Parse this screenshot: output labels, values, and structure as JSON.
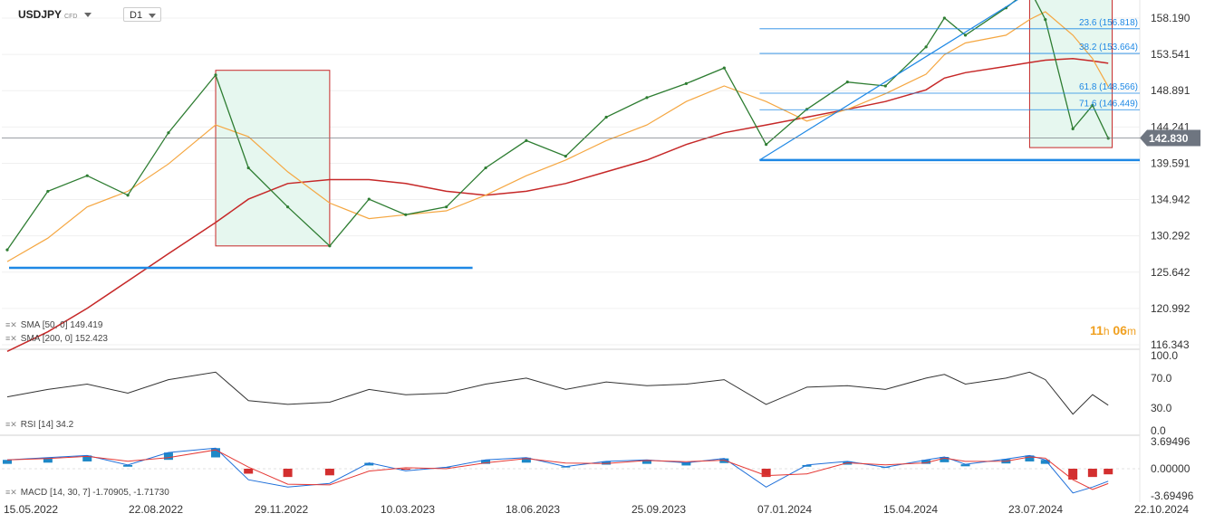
{
  "header": {
    "symbol": "USDJPY",
    "instrument_type": "CFD",
    "timeframe": "D1"
  },
  "countdown": {
    "hours": "11",
    "h_unit": "h",
    "minutes": "06",
    "m_unit": "m"
  },
  "colors": {
    "candle": "#2e7d32",
    "sma50": "#f5a742",
    "sma200": "#c62828",
    "support": "#1e88e5",
    "fib": "#1e88e5",
    "box_fill": "#e6f7ef",
    "box_border": "#c62828",
    "price_label_bg": "#6e7580",
    "rsi": "#333333",
    "macd_main": "#1e6fd9",
    "macd_signal": "#e53935",
    "hist_pos": "#1e88c7",
    "hist_neg": "#d32f2f"
  },
  "price_axis_labels": [
    "158.190",
    "153.541",
    "148.891",
    "144.241",
    "139.591",
    "134.942",
    "130.292",
    "125.642",
    "120.992",
    "116.343"
  ],
  "current_price": "142.830",
  "fib_levels": [
    {
      "label": "23.6 (156.818)",
      "value": 156.818
    },
    {
      "label": "38.2 (153.664)",
      "value": 153.664
    },
    {
      "label": "61.8 (148.566)",
      "value": 148.566
    },
    {
      "label": "71.6 (146.449)",
      "value": 146.449
    }
  ],
  "rsi_axis_labels": [
    "100.0",
    "70.0",
    "30.0",
    "0.0"
  ],
  "macd_axis_labels": [
    "3.69496",
    "0.00000",
    "-3.69496"
  ],
  "date_labels": [
    "15.05.2022",
    "22.08.2022",
    "29.11.2022",
    "10.03.2023",
    "18.06.2023",
    "25.09.2023",
    "07.01.2024",
    "15.04.2024",
    "23.07.2024",
    "22.10.2024"
  ],
  "legends": {
    "sma50": "SMA  [50,  0]  149.419",
    "sma200": "SMA  [200,  0]  152.423",
    "rsi": "RSI  [14]  34.2",
    "macd": "MACD  [14,  30,  7]  -1.70905,  -1.71730"
  },
  "chart_data": {
    "type": "line",
    "title": "USDJPY",
    "x": [
      "2022-05-15",
      "2022-06-15",
      "2022-07-15",
      "2022-08-15",
      "2022-09-15",
      "2022-10-21",
      "2022-11-15",
      "2022-12-15",
      "2023-01-16",
      "2023-02-15",
      "2023-03-15",
      "2023-04-15",
      "2023-05-15",
      "2023-06-15",
      "2023-07-15",
      "2023-08-15",
      "2023-09-15",
      "2023-10-15",
      "2023-11-13",
      "2023-12-15",
      "2024-01-15",
      "2024-02-15",
      "2024-03-15",
      "2024-04-15",
      "2024-04-29",
      "2024-05-15",
      "2024-06-15",
      "2024-07-03",
      "2024-07-15",
      "2024-08-05",
      "2024-08-20",
      "2024-09-01"
    ],
    "series": [
      {
        "name": "USDJPY",
        "values": [
          128.5,
          136.0,
          138.0,
          135.5,
          143.5,
          150.9,
          139.0,
          134.0,
          129.0,
          135.0,
          133.0,
          134.0,
          139.0,
          142.5,
          140.5,
          145.5,
          148.0,
          149.8,
          151.8,
          142.0,
          146.5,
          150.0,
          149.5,
          154.5,
          158.2,
          156.0,
          159.5,
          161.9,
          158.0,
          144.0,
          147.0,
          142.8
        ]
      },
      {
        "name": "SMA [50, 0]",
        "values": [
          127.0,
          130.0,
          134.0,
          136.0,
          139.5,
          144.5,
          143.0,
          138.5,
          134.5,
          132.5,
          133.0,
          133.5,
          135.5,
          138.0,
          140.0,
          142.5,
          144.5,
          147.5,
          149.5,
          147.5,
          145.0,
          146.5,
          148.5,
          151.0,
          153.5,
          155.0,
          156.0,
          158.0,
          159.0,
          156.0,
          153.0,
          149.4
        ]
      },
      {
        "name": "SMA [200, 0]",
        "values": [
          115.5,
          118.0,
          121.0,
          124.5,
          128.0,
          132.0,
          135.0,
          137.0,
          137.5,
          137.5,
          137.0,
          136.0,
          135.5,
          136.0,
          137.0,
          138.5,
          140.0,
          142.0,
          143.5,
          144.5,
          145.5,
          146.5,
          147.5,
          149.0,
          150.5,
          151.2,
          152.0,
          152.5,
          152.8,
          153.0,
          152.7,
          152.4
        ]
      }
    ],
    "ylim": [
      116.343,
      158.19
    ],
    "support_levels": [
      126.2,
      140.0
    ],
    "rsi": {
      "name": "RSI [14]",
      "last": 34.2,
      "ylim": [
        0,
        100
      ],
      "values": [
        45,
        55,
        62,
        50,
        68,
        78,
        40,
        35,
        38,
        55,
        48,
        50,
        62,
        70,
        55,
        65,
        60,
        62,
        68,
        35,
        58,
        60,
        55,
        70,
        75,
        62,
        70,
        78,
        68,
        22,
        48,
        34
      ]
    },
    "macd": {
      "name": "MACD [14, 30, 7]",
      "main_last": -1.70905,
      "signal_last": -1.7173,
      "ylim": [
        -3.69496,
        3.69496
      ],
      "values": [
        1.2,
        1.5,
        1.8,
        0.5,
        2.2,
        2.8,
        -1.5,
        -2.5,
        -2.0,
        0.8,
        -0.3,
        0.2,
        1.2,
        1.5,
        0.3,
        1.0,
        1.2,
        0.8,
        1.4,
        -2.5,
        0.5,
        1.0,
        0.2,
        1.2,
        1.6,
        0.6,
        1.3,
        1.8,
        1.2,
        -3.3,
        -2.5,
        -1.7
      ]
    }
  }
}
